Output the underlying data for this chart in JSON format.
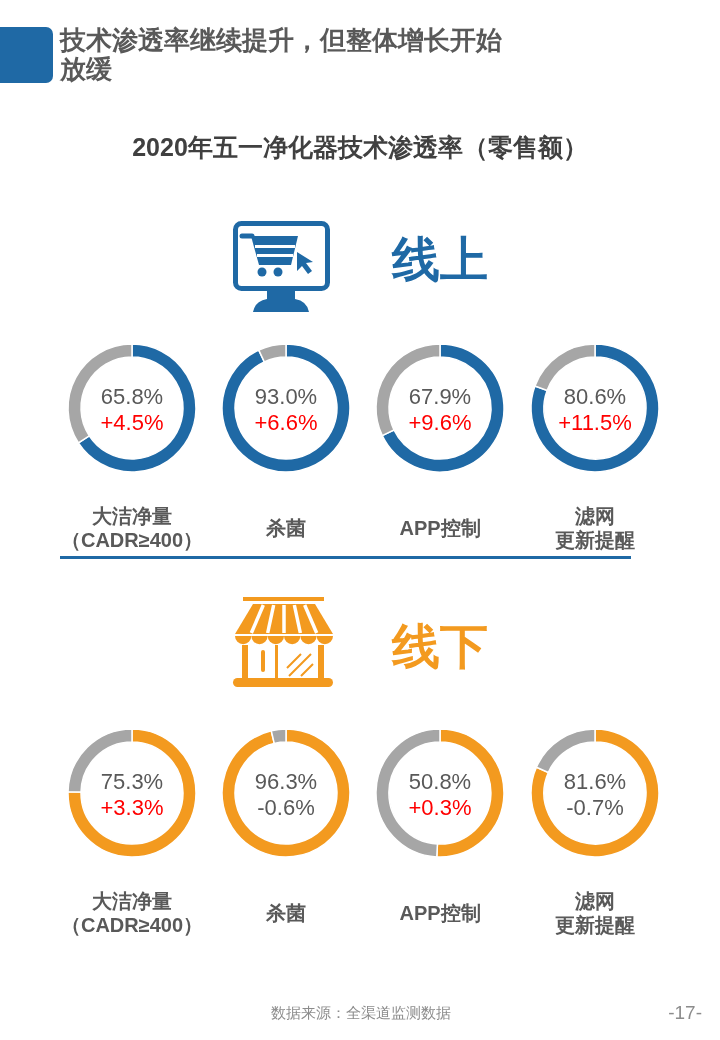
{
  "chart_data": [
    {
      "type": "other",
      "title": "技术渗透率继续提升，但整体增长开始放缓",
      "subtitle": "2020年五一净化器技术渗透率（零售额）"
    },
    {
      "type": "other",
      "title": "线上"
    },
    {
      "type": "donut",
      "xlabel": "大洁净量（CADR≥400）",
      "categories": [
        null,
        null
      ],
      "values": [
        65.8,
        34.2
      ],
      "colors": [
        "#1f69a5",
        "#a6a6a6"
      ],
      "value_labels": [
        "65.8%",
        null
      ],
      "annotations": [
        "+4.5%"
      ]
    },
    {
      "type": "donut",
      "xlabel": "杀菌",
      "categories": [
        null,
        null
      ],
      "values": [
        93.0,
        7.0
      ],
      "colors": [
        "#1f69a5",
        "#a6a6a6"
      ],
      "value_labels": [
        "93.0%",
        null
      ],
      "annotations": [
        "+6.6%"
      ]
    },
    {
      "type": "donut",
      "xlabel": "APP控制",
      "categories": [
        null,
        null
      ],
      "values": [
        67.9,
        32.1
      ],
      "colors": [
        "#1f69a5",
        "#a6a6a6"
      ],
      "value_labels": [
        "67.9%",
        null
      ],
      "annotations": [
        "+9.6%"
      ]
    },
    {
      "type": "donut",
      "xlabel": "滤网更新提醒",
      "categories": [
        null,
        null
      ],
      "values": [
        80.6,
        19.4
      ],
      "colors": [
        "#1f69a5",
        "#a6a6a6"
      ],
      "value_labels": [
        "80.6%",
        null
      ],
      "annotations": [
        "+11.5%"
      ]
    },
    {
      "type": "other",
      "title": "线下"
    },
    {
      "type": "donut",
      "xlabel": "大洁净量（CADR≥400）",
      "categories": [
        null,
        null
      ],
      "values": [
        75.3,
        24.7
      ],
      "colors": [
        "#f39a1f",
        "#a6a6a6"
      ],
      "value_labels": [
        "75.3%",
        null
      ],
      "annotations": [
        "+3.3%"
      ]
    },
    {
      "type": "donut",
      "xlabel": "杀菌",
      "categories": [
        null,
        null
      ],
      "values": [
        96.3,
        3.7
      ],
      "colors": [
        "#f39a1f",
        "#a6a6a6"
      ],
      "value_labels": [
        "96.3%",
        null
      ],
      "annotations": [
        "-0.6%"
      ]
    },
    {
      "type": "donut",
      "xlabel": "APP控制",
      "categories": [
        null,
        null
      ],
      "values": [
        50.8,
        49.2
      ],
      "colors": [
        "#f39a1f",
        "#a6a6a6"
      ],
      "value_labels": [
        "50.8%",
        null
      ],
      "annotations": [
        "+0.3%"
      ]
    },
    {
      "type": "donut",
      "xlabel": "滤网更新提醒",
      "categories": [
        null,
        null
      ],
      "values": [
        81.6,
        18.4
      ],
      "colors": [
        "#f39a1f",
        "#a6a6a6"
      ],
      "value_labels": [
        "81.6%",
        null
      ],
      "annotations": [
        "-0.7%"
      ]
    },
    {
      "type": "other",
      "annotations": [
        "数据来源：全渠道监测数据",
        "-17-"
      ]
    }
  ]
}
